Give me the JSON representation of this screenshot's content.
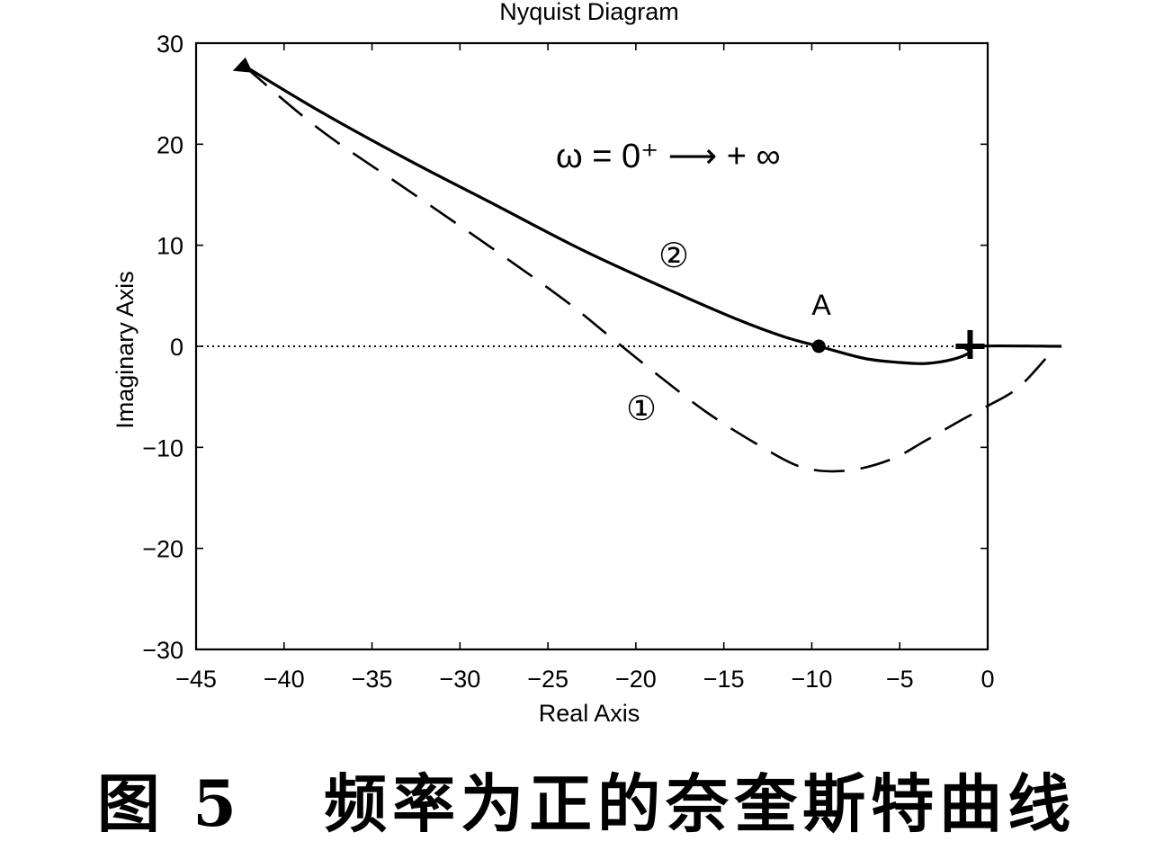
{
  "chart_data": {
    "type": "line",
    "title": "Nyquist Diagram",
    "xlabel": "Real Axis",
    "ylabel": "Imaginary Axis",
    "xlim": [
      -45,
      0
    ],
    "ylim": [
      -30,
      30
    ],
    "xticks": [
      -45,
      -40,
      -35,
      -30,
      -25,
      -20,
      -15,
      -10,
      -5,
      0
    ],
    "yticks": [
      -30,
      -20,
      -10,
      0,
      10,
      20,
      30
    ],
    "xtick_labels": [
      "−45",
      "−40",
      "−35",
      "−30",
      "−25",
      "−20",
      "−15",
      "−10",
      "−5",
      "0"
    ],
    "ytick_labels": [
      "−30",
      "−20",
      "−10",
      "0",
      "10",
      "20",
      "30"
    ],
    "grid": false,
    "reference_line": {
      "y": 0,
      "style": "dotted"
    },
    "series": [
      {
        "label": "①",
        "style": "dashed",
        "x": [
          -42.3,
          -38,
          -33,
          -28,
          -24,
          -21.5,
          -19,
          -16,
          -13,
          -10.5,
          -8,
          -5.5,
          -3.5,
          -1.5,
          0,
          1.8,
          3.8
        ],
        "y": [
          27.8,
          21.5,
          15.5,
          9.5,
          4.5,
          1.0,
          -2.5,
          -6.5,
          -9.8,
          -12.0,
          -12.3,
          -11.2,
          -9.3,
          -7.3,
          -5.9,
          -4.0,
          -0.2
        ]
      },
      {
        "label": "②",
        "style": "solid",
        "x": [
          -42.3,
          -38,
          -33,
          -28,
          -23,
          -18,
          -14,
          -11.5,
          -9.6,
          -7,
          -5,
          -3.5,
          -2,
          -1,
          -0.9,
          4.2
        ],
        "y": [
          27.8,
          23.3,
          18.5,
          14.0,
          9.5,
          5.5,
          2.5,
          0.9,
          0.0,
          -1.2,
          -1.6,
          -1.7,
          -1.3,
          -0.6,
          0.0,
          0.0
        ]
      }
    ],
    "markers": [
      {
        "name": "start-triangle",
        "x": -42.3,
        "y": 27.8,
        "shape": "triangle"
      },
      {
        "name": "point-A",
        "x": -9.6,
        "y": 0.0,
        "shape": "dot",
        "label": "A"
      },
      {
        "name": "critical-point",
        "x": -1.0,
        "y": 0.0,
        "shape": "plus"
      }
    ],
    "annotations": {
      "omega_text": "ω = 0⁺ ⟶ + ∞",
      "curve1_label": "①",
      "curve2_label": "②",
      "pointA_label": "A"
    }
  },
  "caption": "图 5   频率为正的奈奎斯特曲线",
  "colors": {
    "ink": "#000000",
    "background": "#ffffff"
  }
}
